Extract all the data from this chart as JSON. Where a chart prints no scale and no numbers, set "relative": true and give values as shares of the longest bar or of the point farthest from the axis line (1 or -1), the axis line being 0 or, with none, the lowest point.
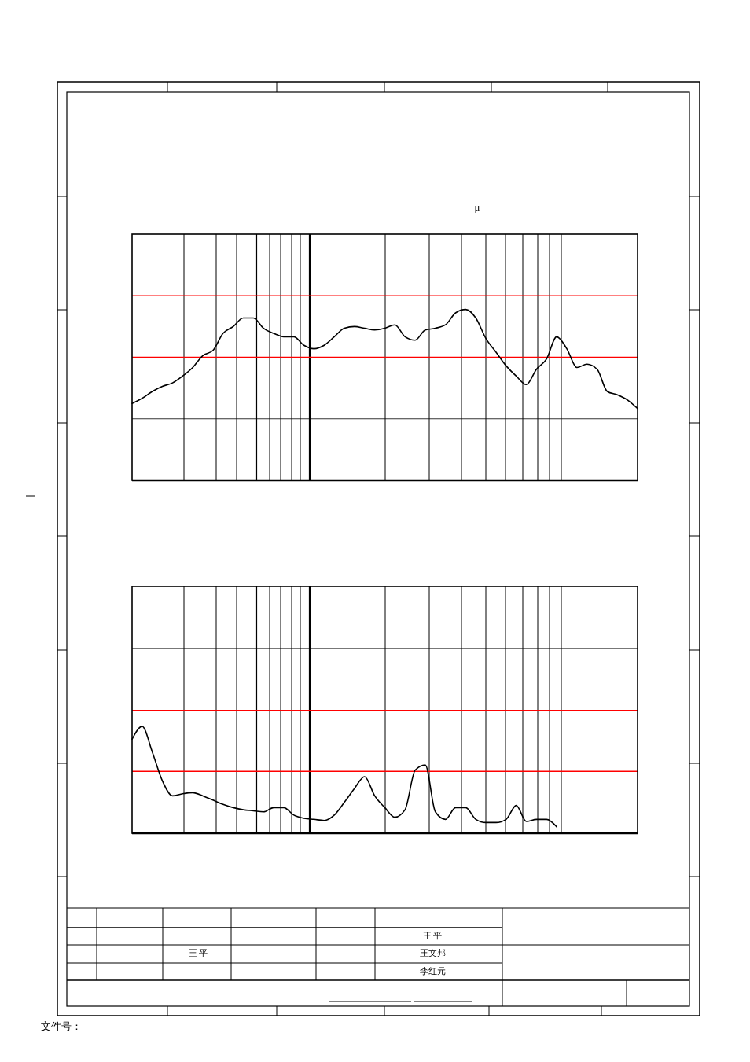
{
  "chart_data": [
    {
      "type": "line",
      "title": "μ",
      "relative": true,
      "grid": "x",
      "categories": [
        null,
        null,
        null,
        null,
        null,
        null,
        null,
        null,
        null,
        null,
        null,
        null,
        null,
        null,
        null,
        null,
        null,
        null,
        null,
        null,
        null,
        null,
        null,
        null,
        null,
        null,
        null,
        null,
        null,
        null,
        null,
        null,
        null,
        null,
        null,
        null,
        null,
        null,
        null,
        null,
        null,
        null,
        null,
        null,
        null,
        null,
        null,
        null,
        null,
        null,
        null
      ],
      "series": [
        {
          "color": "#000000",
          "values": [
            0.45,
            0.48,
            0.52,
            0.55,
            0.57,
            0.61,
            0.66,
            0.73,
            0.76,
            0.86,
            0.9,
            0.95,
            0.95,
            0.89,
            0.86,
            0.84,
            0.84,
            0.79,
            0.77,
            0.79,
            0.84,
            0.89,
            0.9,
            0.89,
            0.88,
            0.89,
            0.91,
            0.84,
            0.82,
            0.88,
            0.89,
            0.91,
            0.98,
            1,
            0.95,
            0.83,
            0.75,
            0.67,
            0.61,
            0.56,
            0.65,
            0.71,
            0.84,
            0.77,
            0.66,
            0.68,
            0.65,
            0.52,
            0.5,
            0.47,
            0.42
          ]
        }
      ],
      "ref_lines": [
        {
          "axis": "y",
          "value": 1.08,
          "color": "#ff0000"
        },
        {
          "axis": "y",
          "value": 0.72,
          "color": "#ff0000"
        },
        {
          "axis": "y",
          "value": 0.36,
          "color": "#000000"
        }
      ]
    },
    {
      "type": "line",
      "relative": true,
      "grid": "x",
      "categories": [
        null,
        null,
        null,
        null,
        null,
        null,
        null,
        null,
        null,
        null,
        null,
        null,
        null,
        null,
        null,
        null,
        null,
        null,
        null,
        null,
        null,
        null,
        null,
        null,
        null,
        null,
        null,
        null,
        null,
        null,
        null,
        null,
        null,
        null,
        null,
        null,
        null,
        null,
        null,
        null,
        null,
        null,
        null,
        null,
        null,
        null,
        null,
        null,
        null,
        null,
        null
      ],
      "series": [
        {
          "color": "#000000",
          "values": [
            0.88,
            1,
            0.76,
            0.49,
            0.35,
            0.37,
            0.38,
            0.35,
            0.31,
            0.27,
            0.24,
            0.22,
            0.21,
            0.2,
            0.24,
            0.24,
            0.17,
            0.14,
            0.13,
            0.12,
            0.17,
            0.29,
            0.42,
            0.53,
            0.35,
            0.24,
            0.15,
            0.22,
            0.59,
            0.64,
            0.2,
            0.13,
            0.24,
            0.24,
            0.13,
            0.1,
            0.1,
            0.13,
            0.26,
            0.11,
            0.13,
            0.13,
            0.06,
            null,
            null,
            null,
            null,
            null,
            null,
            null,
            null
          ]
        }
      ],
      "ref_lines": [
        {
          "axis": "y",
          "value": 1.73,
          "color": "#000000"
        },
        {
          "axis": "y",
          "value": 1.15,
          "color": "#ff0000"
        },
        {
          "axis": "y",
          "value": 0.58,
          "color": "#ff0000"
        }
      ]
    },
    {
      "type": "other",
      "annotations": [
        "王 平",
        "王文邦",
        "李红元",
        "王 平",
        "文件号："
      ]
    }
  ]
}
